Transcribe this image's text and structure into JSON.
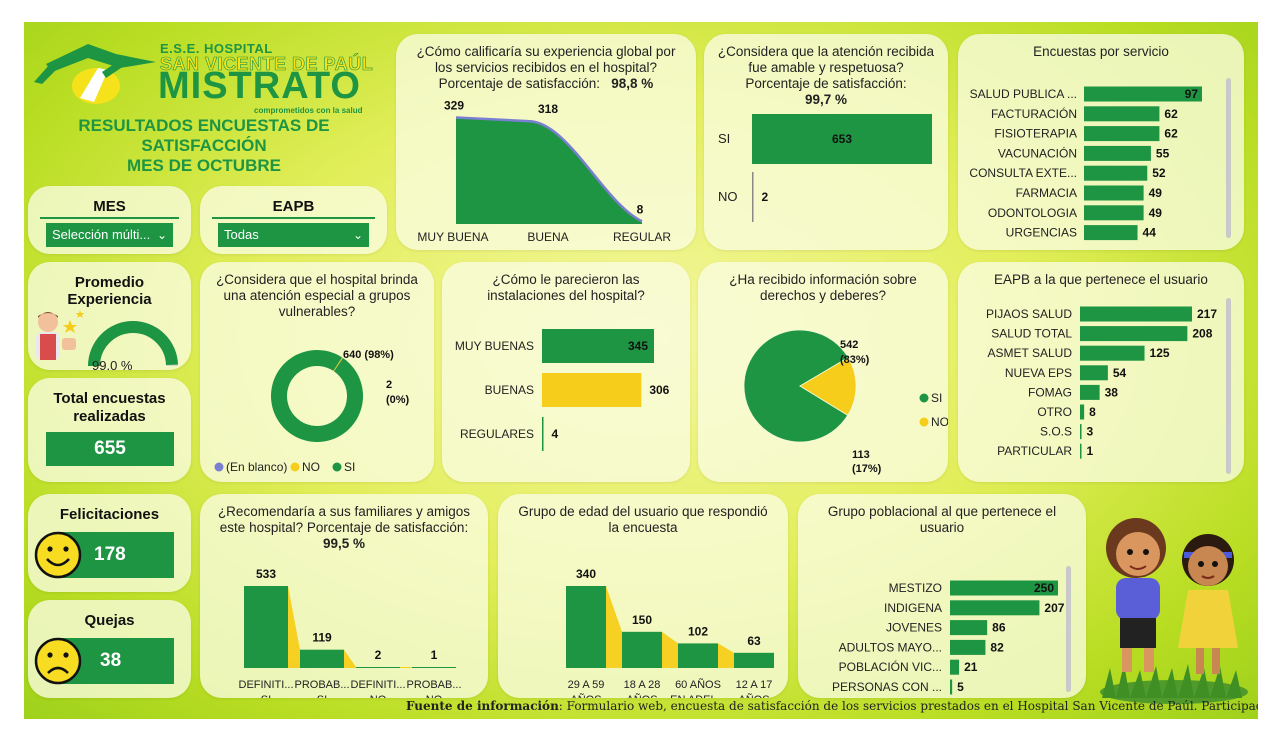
{
  "header": {
    "logo_line1": "E.S.E. HOSPITAL",
    "logo_line2": "SAN VICENTE DE PAÚL",
    "logo_line3": "MISTRATO",
    "logo_line4": "comprometidos con la salud",
    "title_line1": "RESULTADOS ENCUESTAS DE",
    "title_line2": "SATISFACCIÓN",
    "title_line3": "MES DE OCTUBRE"
  },
  "filters": {
    "mes": {
      "label": "MES",
      "value": "Selección múlti..."
    },
    "eapb": {
      "label": "EAPB",
      "value": "Todas"
    }
  },
  "kpis": {
    "promedio": {
      "title_line1": "Promedio",
      "title_line2": "Experiencia",
      "value": "99,0 %",
      "fraction": 0.99
    },
    "total": {
      "title_line1": "Total encuestas",
      "title_line2": "realizadas",
      "value": "655"
    },
    "felicitaciones": {
      "title": "Felicitaciones",
      "value": "178"
    },
    "quejas": {
      "title": "Quejas",
      "value": "38"
    }
  },
  "colors": {
    "green": "#1e9543",
    "yellow": "#f5cd1a",
    "blue": "#7b7fd1"
  },
  "footer": {
    "label": "Fuente de información",
    "text": ": Formulario web, encuesta de satisfacción de los servicios prestados en el Hospital San Vicente de Paúl. Participación social en salud."
  },
  "chart_data": [
    {
      "id": "experiencia",
      "type": "area",
      "title_line1": "¿Cómo calificaría su experiencia global por",
      "title_line2": "los servicios recibidos en el hospital?",
      "title_line3": "Porcentaje de satisfacción:",
      "title_value": "98,8 %",
      "categories": [
        "MUY BUENA",
        "BUENA",
        "REGULAR"
      ],
      "values": [
        329,
        318,
        8
      ],
      "labels": [
        "329",
        "318",
        "8"
      ]
    },
    {
      "id": "amable",
      "type": "bar",
      "orientation": "horizontal",
      "title_line1": "¿Considera que la atención recibida",
      "title_line2": "fue amable y respetuosa?",
      "title_line3": "Porcentaje de satisfacción:",
      "title_value": "99,7 %",
      "categories": [
        "SI",
        "NO"
      ],
      "values": [
        653,
        2
      ],
      "labels": [
        "653",
        "2"
      ]
    },
    {
      "id": "servicio",
      "type": "bar",
      "orientation": "horizontal",
      "title": "Encuestas por servicio",
      "categories": [
        "SALUD PUBLICA ...",
        "FACTURACIÓN",
        "FISIOTERAPIA",
        "VACUNACIÓN",
        "CONSULTA EXTE...",
        "FARMACIA",
        "ODONTOLOGIA",
        "URGENCIAS"
      ],
      "values": [
        97,
        62,
        62,
        55,
        52,
        49,
        49,
        44
      ],
      "labels": [
        "97",
        "62",
        "62",
        "55",
        "52",
        "49",
        "49",
        "44"
      ]
    },
    {
      "id": "vulnerables",
      "type": "pie",
      "donut": true,
      "title_line1": "¿Considera que el hospital brinda",
      "title_line2": "una atención especial a grupos",
      "title_line3": "vulnerables?",
      "slices": [
        {
          "name": "SI",
          "value": 640,
          "label_line1": "640 (98%)",
          "label_line2": ""
        },
        {
          "name": "NO",
          "value": 2,
          "label_line1": "2",
          "label_line2": "(0%)"
        },
        {
          "name": "(En blanco)",
          "value": 0.3,
          "label_line1": "",
          "label_line2": ""
        }
      ],
      "legend": [
        "(En blanco)",
        "NO",
        "SI"
      ],
      "legend_position": "bottom"
    },
    {
      "id": "instalaciones",
      "type": "bar",
      "orientation": "horizontal",
      "title_line1": "¿Cómo le parecieron las",
      "title_line2": "instalaciones del hospital?",
      "categories": [
        "MUY BUENAS",
        "BUENAS",
        "REGULARES"
      ],
      "values": [
        345,
        306,
        4
      ],
      "labels": [
        "345",
        "306",
        "4"
      ]
    },
    {
      "id": "derechos",
      "type": "pie",
      "title_line1": "¿Ha recibido información sobre",
      "title_line2": "derechos y deberes?",
      "slices": [
        {
          "name": "SI",
          "value": 542,
          "label_line1": "542",
          "label_line2": "(83%)"
        },
        {
          "name": "NO",
          "value": 113,
          "label_line1": "113",
          "label_line2": "(17%)"
        }
      ],
      "legend": [
        "SI",
        "NO"
      ],
      "legend_position": "right"
    },
    {
      "id": "eapb",
      "type": "bar",
      "orientation": "horizontal",
      "title": "EAPB a la que pertenece el usuario",
      "categories": [
        "PIJAOS SALUD",
        "SALUD TOTAL",
        "ASMET SALUD",
        "NUEVA EPS",
        "FOMAG",
        "OTRO",
        "S.O.S",
        "PARTICULAR"
      ],
      "values": [
        217,
        208,
        125,
        54,
        38,
        8,
        3,
        1
      ],
      "labels": [
        "217",
        "208",
        "125",
        "54",
        "38",
        "8",
        "3",
        "1"
      ]
    },
    {
      "id": "recomendaria",
      "type": "bar",
      "title_line1": "¿Recomendaría a sus familiares y amigos",
      "title_line2": "este hospital? Porcentaje de satisfacción:",
      "title_value": "99,5 %",
      "categories": [
        [
          "DEFINITI...",
          "SI"
        ],
        [
          "PROBAB...",
          "SI"
        ],
        [
          "DEFINITI...",
          "NO"
        ],
        [
          "PROBAB...",
          "NO"
        ]
      ],
      "values": [
        533,
        119,
        2,
        1
      ],
      "labels": [
        "533",
        "119",
        "2",
        "1"
      ]
    },
    {
      "id": "edad",
      "type": "bar",
      "title_line1": "Grupo de edad del usuario que respondió",
      "title_line2": "la encuesta",
      "categories": [
        [
          "29 A 59",
          "AÑOS"
        ],
        [
          "18 A 28",
          "AÑOS"
        ],
        [
          "60 AÑOS",
          "EN ADEL..."
        ],
        [
          "12 A 17",
          "AÑOS"
        ]
      ],
      "values": [
        340,
        150,
        102,
        63
      ],
      "labels": [
        "340",
        "150",
        "102",
        "63"
      ]
    },
    {
      "id": "poblacional",
      "type": "bar",
      "orientation": "horizontal",
      "title_line1": "Grupo poblacional al que pertenece el",
      "title_line2": "usuario",
      "categories": [
        "MESTIZO",
        "INDIGENA",
        "JOVENES",
        "ADULTOS MAYO...",
        "POBLACIÓN VIC...",
        "PERSONAS CON ..."
      ],
      "values": [
        250,
        207,
        86,
        82,
        21,
        5
      ],
      "labels": [
        "250",
        "207",
        "86",
        "82",
        "21",
        "5"
      ]
    }
  ]
}
